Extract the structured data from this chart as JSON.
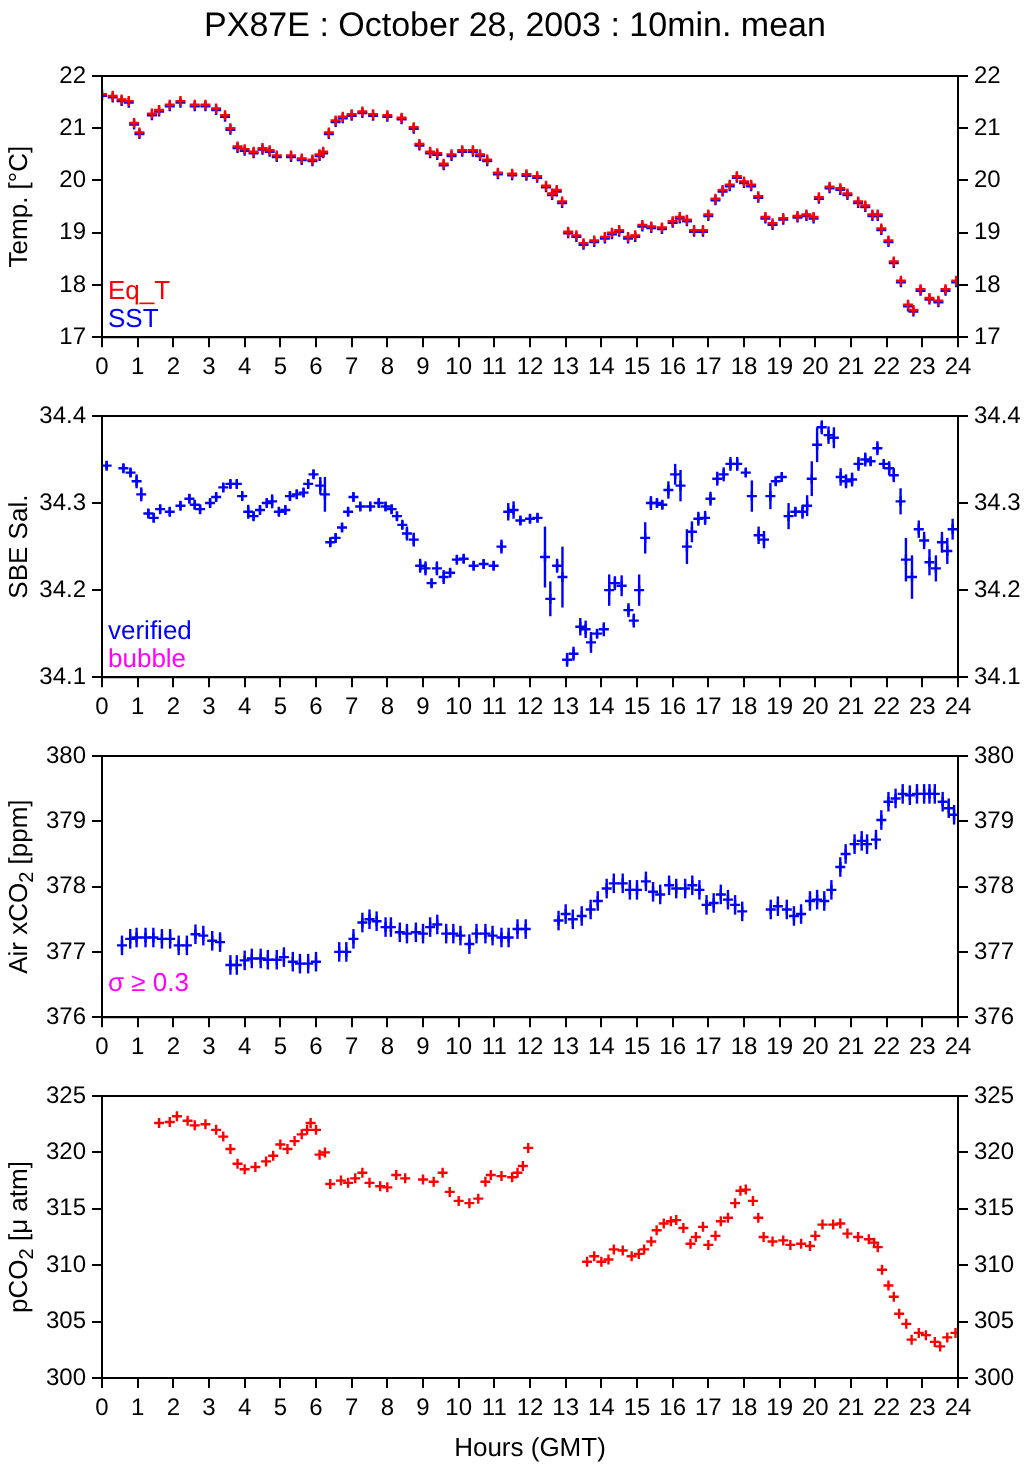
{
  "chart_data": [
    {
      "type": "scatter",
      "title": "PX87E : October 28, 2003 : 10min. mean",
      "ylabel": "Temp. [°C]",
      "marker": "cross",
      "legend": "bottom left",
      "xlim": [
        0,
        24
      ],
      "xticks": [
        0,
        1,
        2,
        3,
        4,
        5,
        6,
        7,
        8,
        9,
        10,
        11,
        12,
        13,
        14,
        15,
        16,
        17,
        18,
        19,
        20,
        21,
        22,
        23,
        24
      ],
      "ylim": [
        17,
        22
      ],
      "yticks": [
        17,
        18,
        19,
        20,
        21,
        22
      ],
      "y2lim": [
        17,
        22
      ],
      "y2ticks": [
        17,
        18,
        19,
        20,
        21,
        22
      ],
      "x": [
        0,
        0.3,
        0.55,
        0.75,
        0.9,
        1.05,
        1.4,
        1.6,
        1.9,
        2.2,
        2.6,
        2.9,
        3.2,
        3.45,
        3.6,
        3.8,
        4.0,
        4.25,
        4.5,
        4.7,
        4.9,
        5.3,
        5.6,
        5.9,
        6.1,
        6.2,
        6.36,
        6.55,
        6.75,
        7.0,
        7.3,
        7.6,
        8.0,
        8.4,
        8.74,
        8.9,
        9.2,
        9.4,
        9.58,
        9.8,
        10.1,
        10.4,
        10.6,
        10.8,
        11.1,
        11.5,
        11.9,
        12.2,
        12.45,
        12.62,
        12.75,
        12.9,
        13.07,
        13.3,
        13.5,
        13.8,
        14.1,
        14.3,
        14.5,
        14.75,
        14.95,
        15.15,
        15.4,
        15.7,
        16.0,
        16.2,
        16.4,
        16.6,
        16.85,
        17.0,
        17.2,
        17.4,
        17.6,
        17.8,
        18.0,
        18.2,
        18.4,
        18.6,
        18.8,
        19.1,
        19.5,
        19.75,
        19.95,
        20.1,
        20.4,
        20.7,
        20.9,
        21.2,
        21.4,
        21.6,
        21.75,
        21.85,
        22.05,
        22.2,
        22.4,
        22.6,
        22.75,
        22.95,
        23.2,
        23.45,
        23.65,
        23.95
      ],
      "series": [
        {
          "name": "Eq_T",
          "color": "#ff0000",
          "values": [
            21.65,
            21.62,
            21.55,
            21.52,
            21.1,
            20.92,
            21.28,
            21.35,
            21.45,
            21.52,
            21.45,
            21.45,
            21.38,
            21.25,
            21.0,
            20.65,
            20.6,
            20.55,
            20.62,
            20.58,
            20.48,
            20.48,
            20.42,
            20.4,
            20.5,
            20.55,
            20.92,
            21.15,
            21.22,
            21.27,
            21.32,
            21.27,
            21.25,
            21.2,
            21.02,
            20.7,
            20.55,
            20.52,
            20.32,
            20.5,
            20.58,
            20.58,
            20.5,
            20.4,
            20.15,
            20.13,
            20.12,
            20.08,
            19.9,
            19.75,
            19.82,
            19.6,
            19.02,
            18.95,
            18.8,
            18.85,
            18.92,
            19.0,
            19.05,
            18.92,
            18.95,
            19.15,
            19.12,
            19.1,
            19.22,
            19.3,
            19.25,
            19.05,
            19.05,
            19.35,
            19.65,
            19.82,
            19.92,
            20.08,
            19.98,
            19.92,
            19.7,
            19.3,
            19.18,
            19.28,
            19.32,
            19.35,
            19.3,
            19.68,
            19.88,
            19.85,
            19.75,
            19.6,
            19.52,
            19.35,
            19.35,
            19.08,
            18.85,
            18.45,
            18.08,
            17.62,
            17.52,
            17.92,
            17.75,
            17.7,
            17.92,
            18.08
          ]
        },
        {
          "name": "SST",
          "color": "#0000ff",
          "values": [
            21.62,
            21.59,
            21.52,
            21.49,
            21.07,
            20.89,
            21.25,
            21.32,
            21.42,
            21.49,
            21.42,
            21.42,
            21.35,
            21.22,
            20.97,
            20.62,
            20.57,
            20.52,
            20.59,
            20.55,
            20.45,
            20.45,
            20.39,
            20.37,
            20.47,
            20.52,
            20.89,
            21.12,
            21.19,
            21.24,
            21.29,
            21.24,
            21.22,
            21.17,
            20.99,
            20.67,
            20.52,
            20.49,
            20.29,
            20.47,
            20.55,
            20.55,
            20.47,
            20.37,
            20.12,
            20.1,
            20.09,
            20.05,
            19.87,
            19.72,
            19.79,
            19.57,
            18.99,
            18.92,
            18.77,
            18.82,
            18.89,
            18.97,
            19.02,
            18.89,
            18.92,
            19.12,
            19.09,
            19.07,
            19.19,
            19.27,
            19.22,
            19.02,
            19.02,
            19.32,
            19.62,
            19.79,
            19.89,
            20.05,
            19.95,
            19.89,
            19.67,
            19.27,
            19.15,
            19.25,
            19.29,
            19.32,
            19.27,
            19.65,
            19.85,
            19.82,
            19.72,
            19.57,
            19.49,
            19.32,
            19.32,
            19.05,
            18.82,
            18.42,
            18.05,
            17.59,
            17.49,
            17.89,
            17.72,
            17.67,
            17.89,
            18.05
          ]
        }
      ]
    },
    {
      "type": "scatter",
      "ylabel": "SBE Sal.",
      "marker": "cross",
      "legend": "bottom left",
      "xlim": [
        0,
        24
      ],
      "xticks": [
        0,
        1,
        2,
        3,
        4,
        5,
        6,
        7,
        8,
        9,
        10,
        11,
        12,
        13,
        14,
        15,
        16,
        17,
        18,
        19,
        20,
        21,
        22,
        23,
        24
      ],
      "ylim": [
        34.1,
        34.4
      ],
      "yticks": [
        34.1,
        34.2,
        34.3,
        34.4
      ],
      "y2lim": [
        34.1,
        34.4
      ],
      "y2ticks": [
        34.1,
        34.2,
        34.3,
        34.4
      ],
      "series": [
        {
          "name": "verified",
          "color": "#0000ff",
          "x": [
            0.13,
            0.6,
            0.8,
            0.97,
            1.1,
            1.3,
            1.45,
            1.63,
            1.9,
            2.2,
            2.45,
            2.6,
            2.75,
            3.03,
            3.2,
            3.4,
            3.6,
            3.78,
            3.93,
            4.1,
            4.25,
            4.43,
            4.62,
            4.77,
            4.96,
            5.14,
            5.27,
            5.46,
            5.65,
            5.78,
            5.93,
            6.12,
            6.25,
            6.4,
            6.55,
            6.73,
            6.9,
            7.05,
            7.24,
            7.52,
            7.76,
            7.95,
            8.12,
            8.27,
            8.42,
            8.55,
            8.74,
            8.92,
            9.07,
            9.24,
            9.39,
            9.58,
            9.76,
            9.95,
            10.14,
            10.42,
            10.7,
            10.98,
            11.2,
            11.39,
            11.54,
            11.73,
            12.0,
            12.21,
            12.42,
            12.57,
            12.76,
            12.91,
            13.04,
            13.22,
            13.41,
            13.56,
            13.71,
            13.88,
            14.07,
            14.22,
            14.38,
            14.57,
            14.76,
            14.91,
            15.06,
            15.23,
            15.39,
            15.56,
            15.71,
            15.88,
            16.07,
            16.22,
            16.4,
            16.54,
            16.72,
            16.91,
            17.06,
            17.25,
            17.43,
            17.62,
            17.81,
            18.05,
            18.22,
            18.41,
            18.56,
            18.74,
            18.89,
            19.06,
            19.25,
            19.44,
            19.64,
            19.77,
            19.9,
            20.05,
            20.18,
            20.37,
            20.52,
            20.71,
            20.86,
            21.03,
            21.21,
            21.4,
            21.55,
            21.74,
            21.92,
            22.07,
            22.2,
            22.39,
            22.54,
            22.71,
            22.9,
            23.05,
            23.2,
            23.38,
            23.55,
            23.7,
            23.85
          ],
          "values": [
            34.343,
            34.34,
            34.335,
            34.325,
            34.31,
            34.288,
            34.283,
            34.293,
            34.29,
            34.297,
            34.305,
            34.298,
            34.293,
            34.3,
            34.307,
            34.318,
            34.322,
            34.322,
            34.308,
            34.29,
            34.285,
            34.292,
            34.3,
            34.302,
            34.29,
            34.292,
            34.308,
            34.31,
            34.312,
            34.322,
            34.333,
            34.32,
            34.31,
            34.255,
            34.26,
            34.272,
            34.29,
            34.307,
            34.296,
            34.296,
            34.3,
            34.296,
            34.293,
            34.285,
            34.275,
            34.265,
            34.258,
            34.228,
            34.225,
            34.208,
            34.225,
            34.215,
            34.22,
            34.235,
            34.236,
            34.228,
            34.23,
            34.228,
            34.25,
            34.29,
            34.292,
            34.28,
            34.282,
            34.283,
            34.238,
            34.19,
            34.228,
            34.215,
            34.12,
            34.127,
            34.158,
            34.155,
            34.14,
            34.15,
            34.155,
            34.2,
            34.208,
            34.205,
            34.177,
            34.165,
            34.2,
            34.26,
            34.3,
            34.3,
            34.298,
            34.315,
            34.333,
            34.32,
            34.25,
            34.267,
            34.282,
            34.283,
            34.305,
            34.328,
            34.333,
            34.345,
            34.345,
            34.335,
            34.308,
            34.263,
            34.258,
            34.308,
            34.325,
            34.33,
            34.285,
            34.29,
            34.29,
            34.297,
            34.328,
            34.367,
            34.387,
            34.378,
            34.375,
            34.33,
            34.325,
            34.327,
            34.345,
            34.35,
            34.348,
            34.363,
            34.345,
            34.34,
            34.332,
            34.302,
            34.235,
            34.215,
            34.27,
            34.257,
            34.232,
            34.225,
            34.255,
            34.245,
            34.27
          ],
          "errors": [
            0.005,
            0.005,
            0.005,
            0.008,
            0.008,
            0.005,
            0.005,
            0.005,
            0.005,
            0.005,
            0.005,
            0.005,
            0.005,
            0.005,
            0.005,
            0.005,
            0.005,
            0.005,
            0.005,
            0.008,
            0.005,
            0.005,
            0.005,
            0.008,
            0.005,
            0.005,
            0.005,
            0.005,
            0.005,
            0.005,
            0.005,
            0.01,
            0.02,
            0.005,
            0.005,
            0.005,
            0.005,
            0.005,
            0.005,
            0.005,
            0.005,
            0.005,
            0.005,
            0.005,
            0.005,
            0.008,
            0.008,
            0.008,
            0.008,
            0.005,
            0.008,
            0.008,
            0.005,
            0.005,
            0.005,
            0.005,
            0.005,
            0.005,
            0.008,
            0.01,
            0.01,
            0.005,
            0.005,
            0.005,
            0.035,
            0.02,
            0.008,
            0.035,
            0.008,
            0.008,
            0.01,
            0.01,
            0.012,
            0.005,
            0.008,
            0.018,
            0.008,
            0.012,
            0.008,
            0.008,
            0.018,
            0.018,
            0.008,
            0.005,
            0.005,
            0.01,
            0.012,
            0.018,
            0.02,
            0.012,
            0.008,
            0.008,
            0.008,
            0.008,
            0.008,
            0.008,
            0.008,
            0.005,
            0.018,
            0.01,
            0.01,
            0.015,
            0.005,
            0.005,
            0.015,
            0.005,
            0.008,
            0.012,
            0.02,
            0.02,
            0.008,
            0.01,
            0.012,
            0.01,
            0.008,
            0.008,
            0.008,
            0.008,
            0.005,
            0.008,
            0.005,
            0.008,
            0.008,
            0.015,
            0.025,
            0.025,
            0.01,
            0.01,
            0.015,
            0.015,
            0.012,
            0.015,
            0.012
          ]
        },
        {
          "name": "bubble",
          "color": "#ff00ff"
        }
      ]
    },
    {
      "type": "scatter",
      "ylabel": "Air xCO$_{2}$ [ppm]",
      "marker": "cross",
      "annotations": [
        "σ ≥ 0.3"
      ],
      "xlim": [
        0,
        24
      ],
      "xticks": [
        0,
        1,
        2,
        3,
        4,
        5,
        6,
        7,
        8,
        9,
        10,
        11,
        12,
        13,
        14,
        15,
        16,
        17,
        18,
        19,
        20,
        21,
        22,
        23,
        24
      ],
      "ylim": [
        376,
        380
      ],
      "yticks": [
        376,
        377,
        378,
        379,
        380
      ],
      "y2lim": [
        376,
        380
      ],
      "y2ticks": [
        376,
        377,
        378,
        379,
        380
      ],
      "series": [
        {
          "color": "#0000ff",
          "x": [
            0.56,
            0.79,
            0.97,
            1.22,
            1.44,
            1.68,
            1.91,
            2.15,
            2.38,
            2.62,
            2.84,
            3.09,
            3.31,
            3.6,
            3.78,
            4.0,
            4.2,
            4.45,
            4.65,
            4.9,
            5.1,
            5.35,
            5.55,
            5.78,
            6.0,
            6.65,
            6.85,
            7.05,
            7.3,
            7.5,
            7.7,
            7.95,
            8.1,
            8.35,
            8.55,
            8.8,
            9.0,
            9.2,
            9.4,
            9.65,
            9.85,
            10.05,
            10.3,
            10.5,
            10.75,
            10.95,
            11.2,
            11.4,
            11.65,
            11.88,
            12.8,
            13.0,
            13.2,
            13.45,
            13.7,
            13.9,
            14.15,
            14.35,
            14.6,
            14.8,
            15.0,
            15.25,
            15.45,
            15.65,
            15.9,
            16.1,
            16.35,
            16.55,
            16.75,
            16.95,
            17.15,
            17.35,
            17.55,
            17.75,
            17.95,
            18.75,
            18.95,
            19.2,
            19.4,
            19.6,
            19.85,
            20.05,
            20.25,
            20.45,
            20.7,
            20.85,
            21.1,
            21.3,
            21.45,
            21.7,
            21.85,
            22.05,
            22.25,
            22.45,
            22.65,
            22.85,
            23.05,
            23.2,
            23.35,
            23.57,
            23.74,
            23.89
          ],
          "values": [
            377.1,
            377.2,
            377.22,
            377.22,
            377.22,
            377.2,
            377.2,
            377.1,
            377.1,
            377.27,
            377.25,
            377.17,
            377.15,
            376.8,
            376.8,
            376.87,
            376.9,
            376.9,
            376.88,
            376.88,
            376.92,
            376.85,
            376.82,
            376.82,
            376.85,
            377.0,
            377.0,
            377.2,
            377.45,
            377.5,
            377.47,
            377.38,
            377.38,
            377.3,
            377.28,
            377.3,
            377.28,
            377.38,
            377.42,
            377.28,
            377.28,
            377.25,
            377.12,
            377.28,
            377.28,
            377.25,
            377.22,
            377.22,
            377.35,
            377.35,
            377.48,
            377.58,
            377.5,
            377.55,
            377.65,
            377.78,
            377.97,
            378.05,
            378.05,
            377.95,
            377.95,
            378.08,
            377.92,
            377.88,
            378.02,
            377.97,
            377.97,
            378.02,
            377.95,
            377.72,
            377.75,
            377.88,
            377.8,
            377.72,
            377.62,
            377.65,
            377.7,
            377.65,
            377.55,
            377.58,
            377.78,
            377.8,
            377.78,
            377.95,
            378.3,
            378.5,
            378.65,
            378.7,
            378.65,
            378.72,
            379.02,
            379.3,
            379.35,
            379.42,
            379.4,
            379.42,
            379.42,
            379.42,
            379.42,
            379.3,
            379.2,
            379.1
          ],
          "errors": [
            0.15,
            0.15,
            0.15,
            0.15,
            0.15,
            0.15,
            0.15,
            0.15,
            0.15,
            0.15,
            0.15,
            0.15,
            0.15,
            0.15,
            0.15,
            0.15,
            0.15,
            0.15,
            0.15,
            0.15,
            0.15,
            0.15,
            0.15,
            0.15,
            0.15,
            0.15,
            0.15,
            0.15,
            0.15,
            0.15,
            0.15,
            0.15,
            0.15,
            0.15,
            0.15,
            0.15,
            0.15,
            0.15,
            0.15,
            0.15,
            0.15,
            0.15,
            0.15,
            0.15,
            0.15,
            0.15,
            0.15,
            0.15,
            0.15,
            0.15,
            0.15,
            0.15,
            0.15,
            0.15,
            0.15,
            0.15,
            0.15,
            0.15,
            0.15,
            0.15,
            0.15,
            0.15,
            0.15,
            0.15,
            0.15,
            0.15,
            0.15,
            0.15,
            0.15,
            0.15,
            0.15,
            0.15,
            0.15,
            0.15,
            0.15,
            0.15,
            0.15,
            0.15,
            0.15,
            0.15,
            0.15,
            0.15,
            0.15,
            0.15,
            0.15,
            0.15,
            0.15,
            0.15,
            0.15,
            0.15,
            0.15,
            0.15,
            0.15,
            0.15,
            0.15,
            0.15,
            0.15,
            0.15,
            0.15,
            0.15,
            0.15,
            0.15
          ]
        }
      ]
    },
    {
      "type": "scatter",
      "ylabel": "pCO$_{2}$ [μ atm]",
      "xlabel": "Hours (GMT)",
      "marker": "cross",
      "xlim": [
        0,
        24
      ],
      "xticks": [
        0,
        1,
        2,
        3,
        4,
        5,
        6,
        7,
        8,
        9,
        10,
        11,
        12,
        13,
        14,
        15,
        16,
        17,
        18,
        19,
        20,
        21,
        22,
        23,
        24
      ],
      "ylim": [
        300,
        325
      ],
      "yticks": [
        300,
        305,
        310,
        315,
        320,
        325
      ],
      "y2lim": [
        300,
        325
      ],
      "y2ticks": [
        300,
        305,
        310,
        315,
        320,
        325
      ],
      "series": [
        {
          "color": "#ff0000",
          "x": [
            1.6,
            1.9,
            2.1,
            2.4,
            2.6,
            2.9,
            3.2,
            3.4,
            3.6,
            3.8,
            4.0,
            4.3,
            4.6,
            4.8,
            5.0,
            5.2,
            5.4,
            5.6,
            5.75,
            5.85,
            6.0,
            6.1,
            6.25,
            6.4,
            6.7,
            6.9,
            7.1,
            7.3,
            7.5,
            7.8,
            8.0,
            8.25,
            8.5,
            9.0,
            9.3,
            9.55,
            9.75,
            10.0,
            10.3,
            10.55,
            10.75,
            10.9,
            11.2,
            11.5,
            11.65,
            11.8,
            11.95,
            13.6,
            13.8,
            14.0,
            14.2,
            14.35,
            14.6,
            14.85,
            15.05,
            15.2,
            15.4,
            15.55,
            15.75,
            15.95,
            16.1,
            16.3,
            16.5,
            16.65,
            16.85,
            17.0,
            17.2,
            17.35,
            17.55,
            17.75,
            17.9,
            18.05,
            18.25,
            18.4,
            18.55,
            18.8,
            19.1,
            19.3,
            19.6,
            19.85,
            20.0,
            20.2,
            20.5,
            20.7,
            20.9,
            21.2,
            21.5,
            21.65,
            21.75,
            21.87,
            22.05,
            22.2,
            22.35,
            22.55,
            22.7,
            22.9,
            23.1,
            23.35,
            23.5,
            23.7,
            23.93
          ],
          "values": [
            322.6,
            322.7,
            323.2,
            322.8,
            322.4,
            322.5,
            322.0,
            321.4,
            320.3,
            319.0,
            318.5,
            318.7,
            319.2,
            319.7,
            320.7,
            320.3,
            321.0,
            321.6,
            322.0,
            322.6,
            322.0,
            319.8,
            320.0,
            317.2,
            317.5,
            317.3,
            317.7,
            318.2,
            317.3,
            317.0,
            316.9,
            318.0,
            317.7,
            317.6,
            317.4,
            318.2,
            316.5,
            315.7,
            315.5,
            315.9,
            317.4,
            318.0,
            317.9,
            317.8,
            318.2,
            318.8,
            320.4,
            310.3,
            310.8,
            310.3,
            310.5,
            311.4,
            311.3,
            310.8,
            311.0,
            311.4,
            312.1,
            313.1,
            313.7,
            313.9,
            314.0,
            313.3,
            311.9,
            312.5,
            313.4,
            311.8,
            312.6,
            313.9,
            314.2,
            315.5,
            316.6,
            316.7,
            315.7,
            314.2,
            312.5,
            312.1,
            312.2,
            311.8,
            311.9,
            311.7,
            312.6,
            313.6,
            313.6,
            313.7,
            312.8,
            312.5,
            312.3,
            312.0,
            311.6,
            309.6,
            308.2,
            307.2,
            305.7,
            304.8,
            303.4,
            304.0,
            303.8,
            303.2,
            302.8,
            303.6,
            304.0
          ]
        }
      ]
    }
  ]
}
